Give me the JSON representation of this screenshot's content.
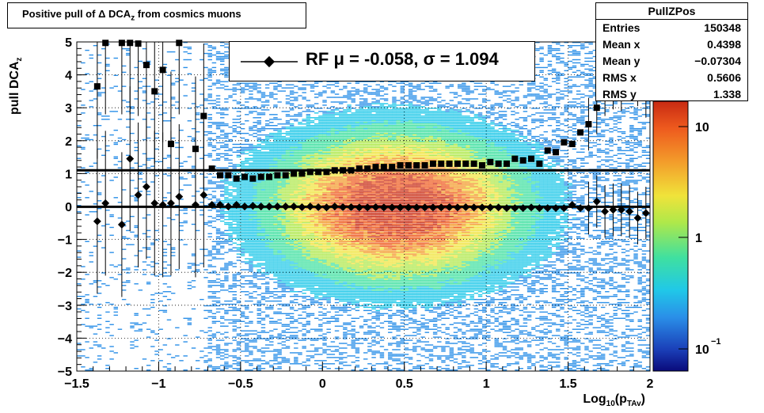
{
  "header": {
    "title_html": "Positive pull of Δ DCA<sub>z</sub> from cosmics muons"
  },
  "stats": {
    "name": "PullZPos",
    "rows": [
      {
        "label": "Entries",
        "value": "150348"
      },
      {
        "label": "Mean x",
        "value": "0.4398"
      },
      {
        "label": "Mean y",
        "value": "−0.07304"
      },
      {
        "label": "RMS x",
        "value": "0.5606"
      },
      {
        "label": "RMS y",
        "value": "1.338"
      }
    ]
  },
  "legend": {
    "text": "RF μ = -0.058, σ =   1.094"
  },
  "chart_data": {
    "type": "heatmap",
    "xlabel": "Log10(pTAv)",
    "ylabel": "pull DCAz",
    "xlim": [
      -1.5,
      2
    ],
    "ylim": [
      -5,
      5
    ],
    "x_ticks": [
      "−1.5",
      "−1",
      "−0.5",
      "0",
      "0.5",
      "1",
      "1.5",
      "2"
    ],
    "y_ticks": [
      "−5",
      "−4",
      "−3",
      "−2",
      "−1",
      "0",
      "1",
      "2",
      "3",
      "4",
      "5"
    ],
    "color_scale": {
      "type": "log",
      "labels": [
        "10−1",
        "1",
        "10"
      ]
    },
    "series": [
      {
        "name": "mean",
        "x": [
          -1.375,
          -1.325,
          -1.225,
          -1.175,
          -1.125,
          -1.075,
          -1.025,
          -0.975,
          -0.925,
          -0.875,
          -0.775,
          -0.725,
          -0.675,
          -0.625,
          -0.575,
          -0.525,
          -0.475,
          -0.425,
          -0.375,
          -0.325,
          -0.275,
          -0.225,
          -0.175,
          -0.125,
          -0.075,
          -0.025,
          0.025,
          0.075,
          0.125,
          0.175,
          0.225,
          0.275,
          0.325,
          0.375,
          0.425,
          0.475,
          0.525,
          0.575,
          0.625,
          0.675,
          0.725,
          0.775,
          0.825,
          0.875,
          0.925,
          0.975,
          1.025,
          1.075,
          1.125,
          1.175,
          1.225,
          1.275,
          1.325,
          1.375,
          1.425,
          1.475,
          1.525,
          1.575,
          1.625,
          1.675,
          1.725,
          1.775,
          1.825,
          1.875,
          1.925,
          1.975
        ],
        "y": [
          -0.45,
          0.1,
          -0.55,
          1.45,
          0.35,
          0.6,
          0.1,
          0.05,
          0.1,
          0.3,
          0.05,
          0.35,
          0.05,
          0.05,
          0.0,
          0.05,
          0.0,
          0.02,
          0.0,
          0.0,
          0.0,
          0.0,
          0.0,
          -0.02,
          0.0,
          -0.02,
          -0.03,
          0.0,
          -0.02,
          -0.02,
          -0.03,
          -0.03,
          -0.02,
          -0.03,
          -0.03,
          -0.03,
          -0.03,
          -0.03,
          -0.03,
          -0.03,
          -0.03,
          -0.02,
          -0.03,
          -0.02,
          -0.03,
          -0.03,
          -0.03,
          -0.03,
          -0.05,
          -0.05,
          -0.05,
          -0.03,
          -0.05,
          -0.05,
          -0.05,
          -0.05,
          0.05,
          -0.05,
          -0.05,
          0.15,
          -0.15,
          -0.1,
          -0.1,
          -0.15,
          -0.35,
          -0.2
        ]
      },
      {
        "name": "sigma",
        "x": [
          -1.375,
          -1.325,
          -1.225,
          -1.175,
          -1.125,
          -1.075,
          -1.025,
          -0.975,
          -0.925,
          -0.875,
          -0.775,
          -0.725,
          -0.675,
          -0.625,
          -0.575,
          -0.525,
          -0.475,
          -0.425,
          -0.375,
          -0.325,
          -0.275,
          -0.225,
          -0.175,
          -0.125,
          -0.075,
          -0.025,
          0.025,
          0.075,
          0.125,
          0.175,
          0.225,
          0.275,
          0.325,
          0.375,
          0.425,
          0.475,
          0.525,
          0.575,
          0.625,
          0.675,
          0.725,
          0.775,
          0.825,
          0.875,
          0.925,
          0.975,
          1.025,
          1.075,
          1.125,
          1.175,
          1.225,
          1.275,
          1.325,
          1.375,
          1.425,
          1.475,
          1.525,
          1.575,
          1.625,
          1.675,
          1.725,
          1.775,
          1.825,
          1.875,
          1.925,
          1.975
        ],
        "y": [
          3.65,
          5.0,
          5.0,
          5.0,
          4.95,
          4.3,
          3.5,
          4.15,
          1.9,
          5.0,
          1.75,
          2.75,
          1.15,
          0.95,
          0.95,
          0.85,
          0.9,
          0.85,
          0.9,
          0.9,
          0.95,
          0.95,
          1.0,
          1.0,
          1.05,
          1.05,
          1.05,
          1.1,
          1.1,
          1.1,
          1.15,
          1.15,
          1.2,
          1.2,
          1.2,
          1.25,
          1.25,
          1.25,
          1.25,
          1.3,
          1.3,
          1.3,
          1.3,
          1.3,
          1.3,
          1.25,
          1.35,
          1.3,
          1.3,
          1.45,
          1.4,
          1.45,
          1.3,
          1.7,
          1.65,
          1.95,
          1.9,
          2.25,
          2.5,
          3.0,
          3.55,
          3.75,
          3.7,
          4.35,
          3.85,
          3.5
        ]
      }
    ],
    "mean_line": -0.01,
    "sigma_line": 1.1
  }
}
